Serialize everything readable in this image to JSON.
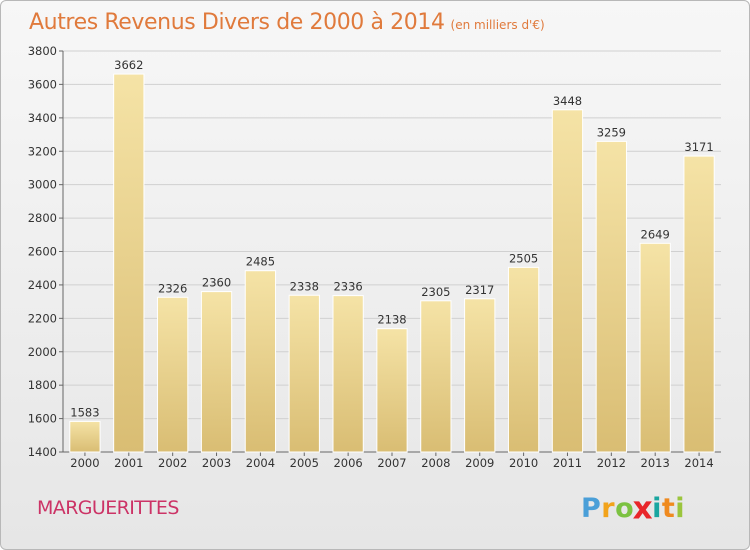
{
  "header": {
    "title": "Autres Revenus Divers de 2000 à 2014",
    "unit": "(en milliers d'€)"
  },
  "footer": {
    "commune": "MARGUERITTES",
    "logo_letters": [
      "P",
      "r",
      "o",
      "x",
      "i",
      "t",
      "i"
    ],
    "logo_colors": [
      "#4a9fd8",
      "#f2a31b",
      "#7cc242",
      "#e8262a",
      "#1aa6a0",
      "#ef8a1f",
      "#9bc53d"
    ]
  },
  "colors": {
    "bar_light": "#f5e3a6",
    "bar_dark": "#d9bd73",
    "title": "#e07a3c",
    "commune": "#cc3366"
  },
  "chart_data": {
    "type": "bar",
    "title": "Autres Revenus Divers de 2000 à 2014",
    "subtitle": "(en milliers d'€)",
    "xlabel": "",
    "ylabel": "",
    "categories": [
      "2000",
      "2001",
      "2002",
      "2003",
      "2004",
      "2005",
      "2006",
      "2007",
      "2008",
      "2009",
      "2010",
      "2011",
      "2012",
      "2013",
      "2014"
    ],
    "values": [
      1583,
      3662,
      2326,
      2360,
      2485,
      2338,
      2336,
      2138,
      2305,
      2317,
      2505,
      3448,
      3259,
      2649,
      3171
    ],
    "ylim": [
      1400,
      3800
    ],
    "yticks": [
      1400,
      1600,
      1800,
      2000,
      2200,
      2400,
      2600,
      2800,
      3000,
      3200,
      3400,
      3600,
      3800
    ],
    "grid": true,
    "legend": "none"
  }
}
